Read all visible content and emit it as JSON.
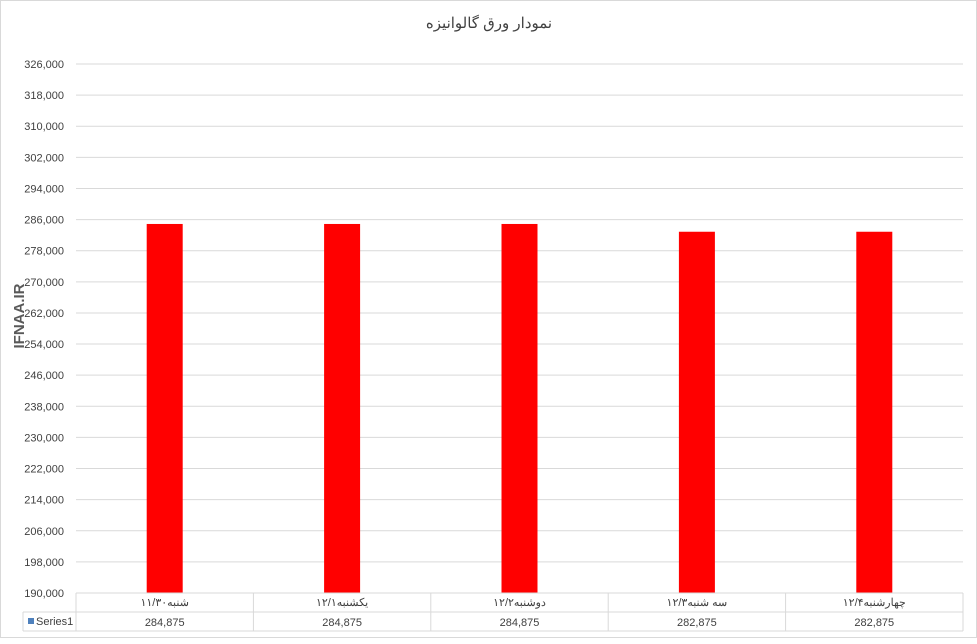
{
  "chart_data": {
    "type": "bar",
    "title": "نمودار ورق گالوانیزه",
    "categories": [
      "شنبه۱۱/۳۰",
      "یکشنبه۱۲/۱",
      "دوشنبه۱۲/۲",
      "سه شنبه۱۲/۳",
      "چهارشنبه۱۲/۴"
    ],
    "series": [
      {
        "name": "Series1",
        "values": [
          284875,
          284875,
          284875,
          282875,
          282875
        ],
        "color": "#ff0000"
      }
    ],
    "value_labels": [
      "284,875",
      "284,875",
      "284,875",
      "282,875",
      "282,875"
    ],
    "ylim": [
      190000,
      326000
    ],
    "ytick_step": 8000,
    "grid": true,
    "data_table": true,
    "legend_key_color": "#4f81bd",
    "watermark": "IFNAA.IR"
  }
}
